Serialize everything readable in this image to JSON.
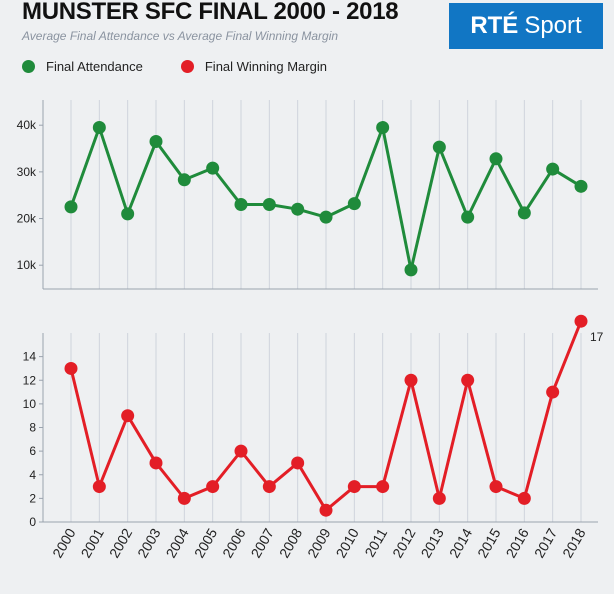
{
  "header": {
    "title": "MUNSTER SFC FINAL 2000 - 2018",
    "subtitle": "Average Final Attendance vs Average Final Winning Margin",
    "logo_text": "RTÉ Sport"
  },
  "colors": {
    "attendance": "#1f8b3b",
    "margin": "#e31e26",
    "logo_bg": "#1176c4",
    "background": "#eef0f2"
  },
  "chart_data": [
    {
      "type": "line",
      "title": "",
      "series": [
        {
          "name": "Final Attendance",
          "values": [
            22500,
            39500,
            21000,
            36500,
            28300,
            30800,
            23000,
            23000,
            22000,
            20300,
            23200,
            39500,
            9000,
            35300,
            20300,
            32800,
            21200,
            30600,
            26900
          ]
        }
      ],
      "categories": [
        "2000",
        "2001",
        "2002",
        "2003",
        "2004",
        "2005",
        "2006",
        "2007",
        "2008",
        "2009",
        "2010",
        "2011",
        "2012",
        "2013",
        "2014",
        "2015",
        "2016",
        "2017",
        "2018"
      ],
      "yticks": [
        {
          "v": 10000,
          "label": "10k"
        },
        {
          "v": 20000,
          "label": "20k"
        },
        {
          "v": 30000,
          "label": "30k"
        },
        {
          "v": 40000,
          "label": "40k"
        }
      ],
      "ylim": [
        4900,
        45400
      ],
      "grid": "vertical",
      "legend": "top-left"
    },
    {
      "type": "line",
      "title": "",
      "series": [
        {
          "name": "Final Winning Margin",
          "values": [
            13,
            3,
            9,
            5,
            2,
            3,
            6,
            3,
            5,
            1,
            3,
            3,
            12,
            2,
            12,
            3,
            2,
            11,
            17
          ]
        }
      ],
      "categories": [
        "2000",
        "2001",
        "2002",
        "2003",
        "2004",
        "2005",
        "2006",
        "2007",
        "2008",
        "2009",
        "2010",
        "2011",
        "2012",
        "2013",
        "2014",
        "2015",
        "2016",
        "2017",
        "2018"
      ],
      "yticks": [
        {
          "v": 0,
          "label": "0"
        },
        {
          "v": 2,
          "label": "2"
        },
        {
          "v": 4,
          "label": "4"
        },
        {
          "v": 6,
          "label": "6"
        },
        {
          "v": 8,
          "label": "8"
        },
        {
          "v": 10,
          "label": "10"
        },
        {
          "v": 12,
          "label": "12"
        },
        {
          "v": 14,
          "label": "14"
        }
      ],
      "ylim": [
        0,
        16
      ],
      "annotation": "17",
      "grid": "vertical"
    }
  ],
  "legend": [
    {
      "label": "Final Attendance"
    },
    {
      "label": "Final Winning Margin"
    }
  ]
}
